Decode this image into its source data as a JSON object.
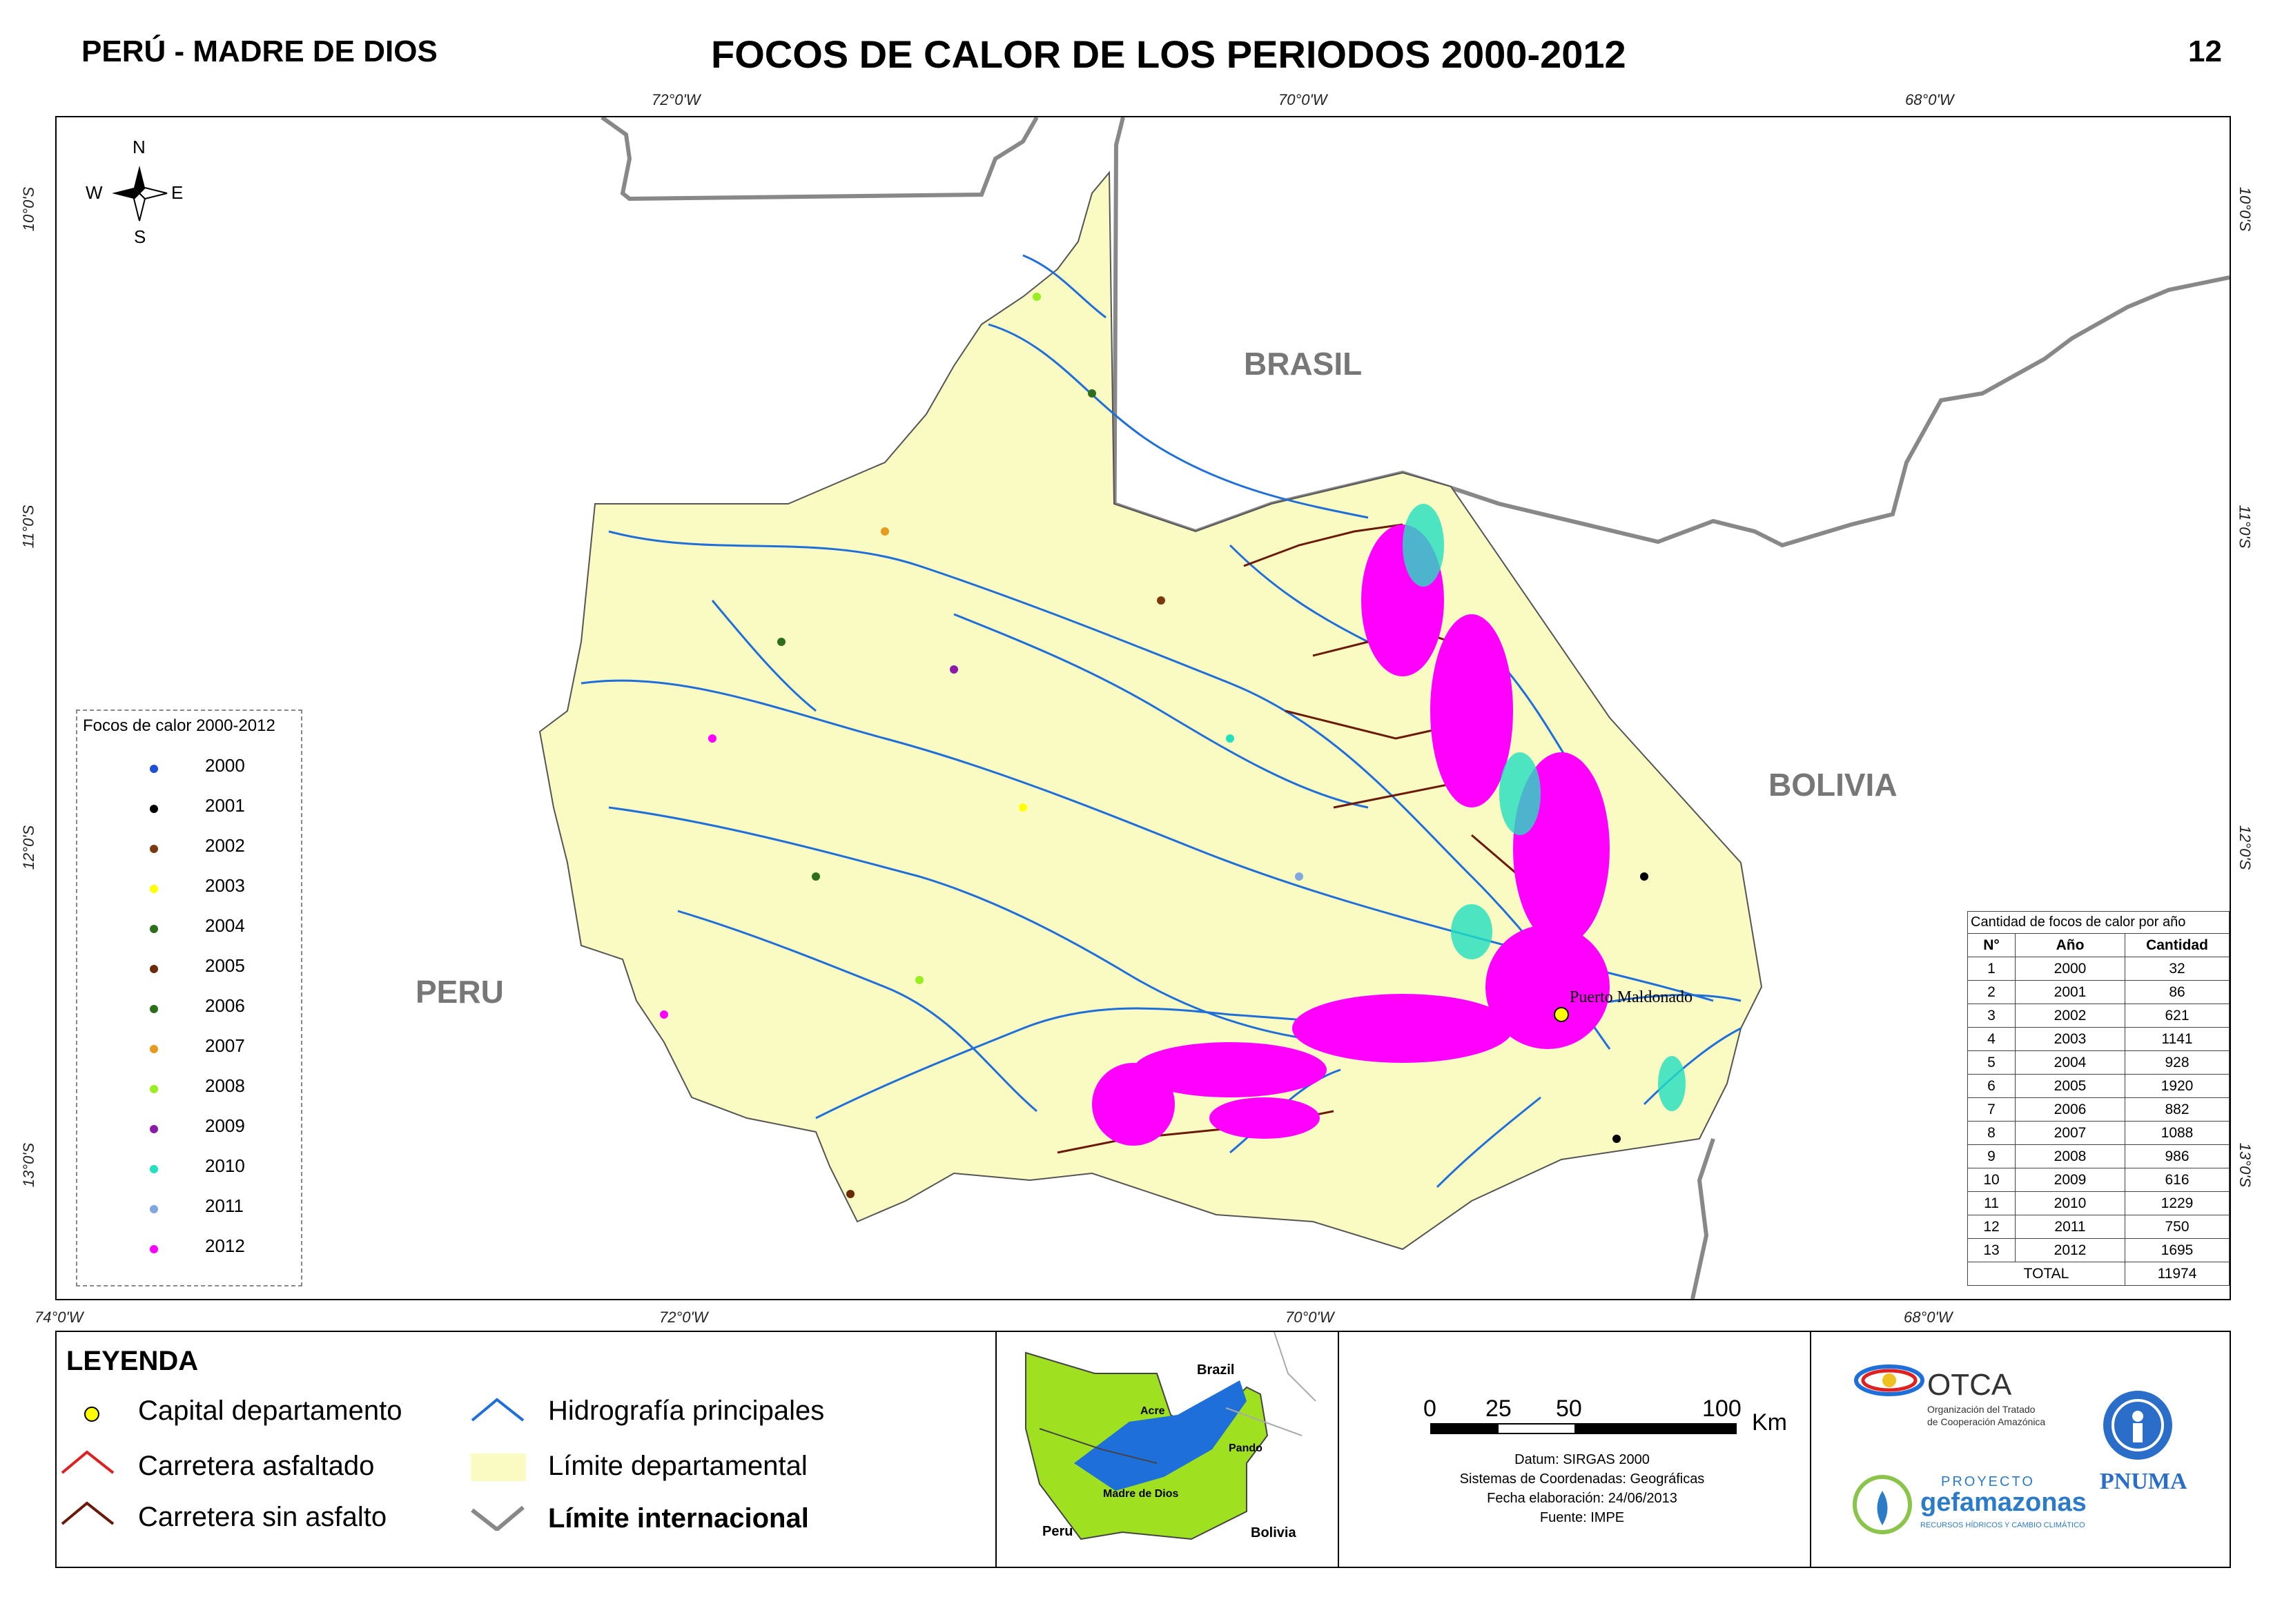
{
  "header": {
    "region": "PERÚ - MADRE DE DIOS",
    "title": "FOCOS DE CALOR DE LOS PERIODOS 2000-2012",
    "page_number": "12"
  },
  "map": {
    "top_lon_labels": [
      "72°0'W",
      "70°0'W",
      "68°0'W"
    ],
    "bottom_lon_labels": [
      "74°0'W",
      "72°0'W",
      "70°0'W",
      "68°0'W"
    ],
    "lat_labels": [
      "10°0'S",
      "11°0'S",
      "12°0'S",
      "13°0'S"
    ],
    "countries": {
      "brasil": "BRASIL",
      "bolivia": "BOLIVIA",
      "peru": "PERU"
    },
    "city": "Puerto Maldonado",
    "compass": {
      "n": "N",
      "s": "S",
      "e": "E",
      "w": "W"
    },
    "colors": {
      "department_fill": "#fafac3",
      "rivers": "#1e6fd9",
      "unpaved_road": "#6b1a0a",
      "border": "#808080",
      "hotspot_2012": "#ff00ff"
    }
  },
  "year_legend": {
    "title": "Focos de calor 2000-2012",
    "items": [
      {
        "year": "2000",
        "color": "#1f4fd6"
      },
      {
        "year": "2001",
        "color": "#000000"
      },
      {
        "year": "2002",
        "color": "#7a3a10"
      },
      {
        "year": "2003",
        "color": "#ffff00"
      },
      {
        "year": "2004",
        "color": "#2d6e1a"
      },
      {
        "year": "2005",
        "color": "#6b2a0a"
      },
      {
        "year": "2006",
        "color": "#2d6e1a"
      },
      {
        "year": "2007",
        "color": "#e69a1e"
      },
      {
        "year": "2008",
        "color": "#99ee22"
      },
      {
        "year": "2009",
        "color": "#8a1aa8"
      },
      {
        "year": "2010",
        "color": "#22e0c0"
      },
      {
        "year": "2011",
        "color": "#7fa8e0"
      },
      {
        "year": "2012",
        "color": "#ff00ff"
      }
    ]
  },
  "count_table": {
    "title": "Cantidad de focos de calor por año",
    "headers": [
      "N°",
      "Año",
      "Cantidad"
    ],
    "rows": [
      [
        "1",
        "2000",
        "32"
      ],
      [
        "2",
        "2001",
        "86"
      ],
      [
        "3",
        "2002",
        "621"
      ],
      [
        "4",
        "2003",
        "1141"
      ],
      [
        "5",
        "2004",
        "928"
      ],
      [
        "6",
        "2005",
        "1920"
      ],
      [
        "7",
        "2006",
        "882"
      ],
      [
        "8",
        "2007",
        "1088"
      ],
      [
        "9",
        "2008",
        "986"
      ],
      [
        "10",
        "2009",
        "616"
      ],
      [
        "11",
        "2010",
        "1229"
      ],
      [
        "12",
        "2011",
        "750"
      ],
      [
        "13",
        "2012",
        "1695"
      ]
    ],
    "total_label": "TOTAL",
    "total_value": "11974"
  },
  "legend": {
    "title": "LEYENDA",
    "capital": "Capital departamento",
    "paved_road": "Carretera asfaltado",
    "unpaved_road": "Carretera sin asfalto",
    "rivers": "Hidrografía principales",
    "dept_limit": "Límite departamental",
    "intl_limit": "Límite internacional"
  },
  "inset": {
    "brazil": "Brazil",
    "acre": "Acre",
    "pando": "Pando",
    "madre_de_dios": "Madre de Dios",
    "peru": "Peru",
    "bolivia": "Bolivia"
  },
  "scale": {
    "ticks": [
      "0",
      "25",
      "50",
      "100"
    ],
    "unit": "Km",
    "datum": "Datum: SIRGAS 2000",
    "coords": "Sistemas de Coordenadas: Geográficas",
    "date": "Fecha elaboración: 24/06/2013",
    "source": "Fuente: IMPE"
  },
  "logos": {
    "otca": "OTCA",
    "otca_sub1": "Organización del Tratado",
    "otca_sub2": "de Cooperación Amazónica",
    "proyecto": "PROYECTO",
    "gef": "gefamazonas",
    "gef_sub": "RECURSOS HÍDRICOS Y CAMBIO CLIMÁTICO",
    "pnuma": "PNUMA"
  }
}
